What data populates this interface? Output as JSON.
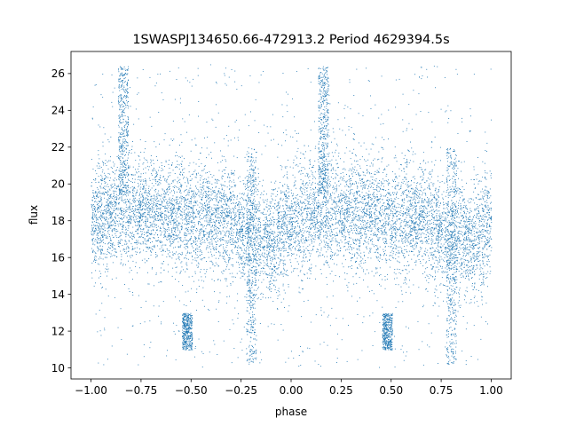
{
  "chart_data": {
    "type": "scatter",
    "title": "1SWASPJ134650.66-472913.2 Period 4629394.5s",
    "xlabel": "phase",
    "ylabel": "flux",
    "xlim": [
      -1.1,
      1.1
    ],
    "ylim": [
      9.4,
      27.2
    ],
    "xticks": [
      "−1.00",
      "−0.75",
      "−0.50",
      "−0.25",
      "0.00",
      "0.25",
      "0.50",
      "0.75",
      "1.00"
    ],
    "xtick_values": [
      -1.0,
      -0.75,
      -0.5,
      -0.25,
      0.0,
      0.25,
      0.5,
      0.75,
      1.0
    ],
    "yticks": [
      "10",
      "12",
      "14",
      "16",
      "18",
      "20",
      "22",
      "24",
      "26"
    ],
    "ytick_values": [
      10,
      12,
      14,
      16,
      18,
      20,
      22,
      24,
      26
    ],
    "grid": false,
    "series": [
      {
        "marker_color": "#1f77b4",
        "description_points": [
          {
            "phase": -1.0,
            "flux_median": 18.0
          },
          {
            "phase": -0.84,
            "flux_median": 18.5
          },
          {
            "phase": -0.75,
            "flux_median": 18.6
          },
          {
            "phase": -0.55,
            "flux_median": 18.4
          },
          {
            "phase": -0.5,
            "flux_median": 18.0
          },
          {
            "phase": -0.35,
            "flux_median": 18.2
          },
          {
            "phase": -0.2,
            "flux_median": 17.0
          },
          {
            "phase": -0.1,
            "flux_median": 16.8
          },
          {
            "phase": 0.0,
            "flux_median": 18.0
          },
          {
            "phase": 0.16,
            "flux_median": 18.5
          },
          {
            "phase": 0.25,
            "flux_median": 18.6
          },
          {
            "phase": 0.45,
            "flux_median": 18.4
          },
          {
            "phase": 0.5,
            "flux_median": 18.0
          },
          {
            "phase": 0.65,
            "flux_median": 18.2
          },
          {
            "phase": 0.8,
            "flux_median": 17.0
          },
          {
            "phase": 0.9,
            "flux_median": 16.8
          },
          {
            "phase": 1.0,
            "flux_median": 18.0
          }
        ],
        "features": [
          {
            "phase_center": -0.84,
            "flux_min": 19.5,
            "flux_max": 26.4
          },
          {
            "phase_center": 0.16,
            "flux_min": 19.5,
            "flux_max": 26.4
          },
          {
            "phase_center": -0.52,
            "flux_min": 11.0,
            "flux_max": 13.0
          },
          {
            "phase_center": 0.48,
            "flux_min": 11.0,
            "flux_max": 13.0
          },
          {
            "phase_center": -0.2,
            "flux_min": 10.2,
            "flux_max": 22.0
          },
          {
            "phase_center": 0.8,
            "flux_min": 10.2,
            "flux_max": 22.0
          }
        ]
      }
    ]
  }
}
